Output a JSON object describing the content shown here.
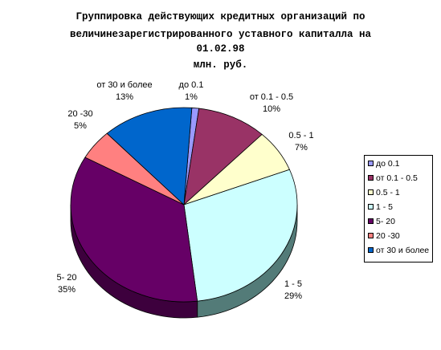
{
  "chart_data": {
    "type": "pie",
    "title_lines": [
      "Группировка действующих кредитных организаций по",
      "величинезарегистрированного уставного капиталла на",
      "01.02.98",
      "млн. руб."
    ],
    "slices": [
      {
        "label": "до 0.1",
        "percent_label": "1%",
        "value": 1,
        "color": "#9999ff",
        "side_color": "#5c5c99"
      },
      {
        "label": "от 0.1 -  0.5",
        "percent_label": "10%",
        "value": 10,
        "color": "#993366",
        "side_color": "#5c1f3d"
      },
      {
        "label": "0.5 - 1",
        "percent_label": "7%",
        "value": 7,
        "color": "#ffffcc",
        "side_color": "#99997a"
      },
      {
        "label": "1 - 5",
        "percent_label": "29%",
        "value": 29,
        "color": "#ccffff",
        "side_color": "#537b78"
      },
      {
        "label": "5- 20",
        "percent_label": "35%",
        "value": 35,
        "color": "#660066",
        "side_color": "#3d003d"
      },
      {
        "label": "20 -30",
        "percent_label": "5%",
        "value": 5,
        "color": "#ff8080",
        "side_color": "#994d4d"
      },
      {
        "label": "от 30 и более",
        "percent_label": "13%",
        "value": 13,
        "color": "#0066cc",
        "side_color": "#003d7a"
      }
    ],
    "legend": {
      "placement": "right",
      "entries": [
        "до 0.1",
        "от 0.1 -  0.5",
        "0.5 - 1",
        "1 - 5",
        "5- 20",
        "20 -30",
        "от 30 и более"
      ]
    }
  }
}
